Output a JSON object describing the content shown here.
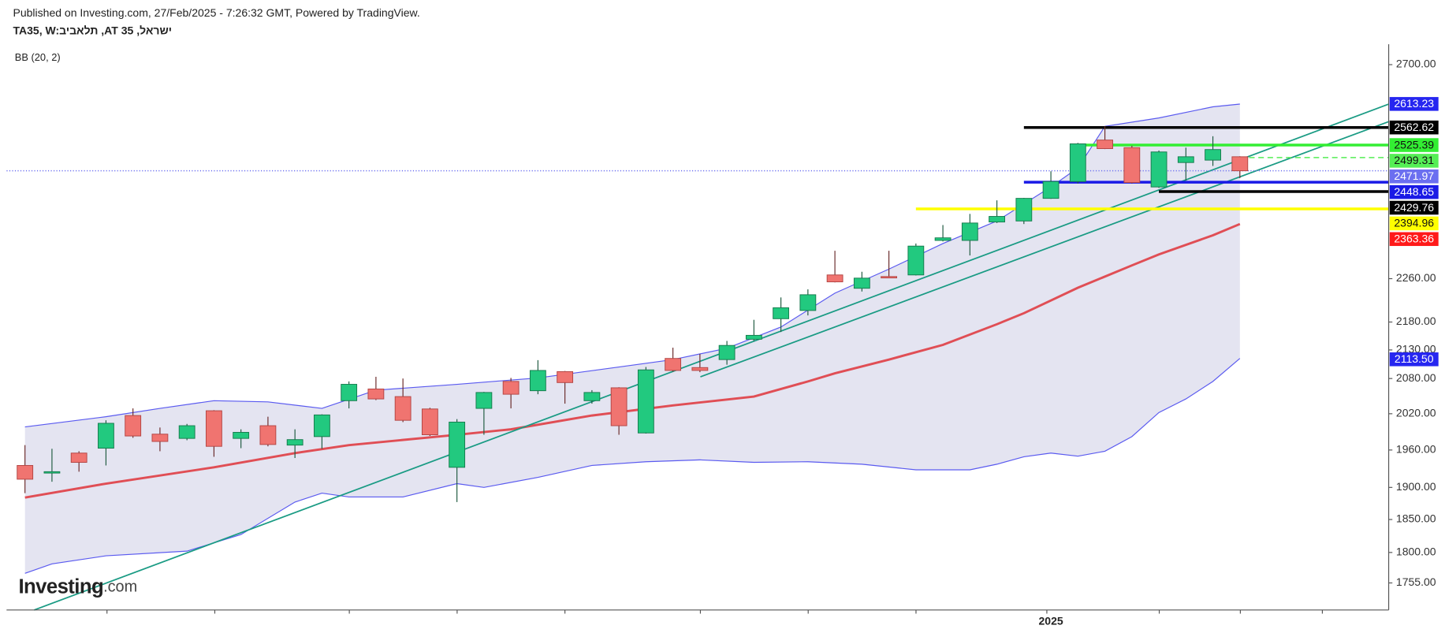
{
  "chart_data": {
    "type": "candlestick",
    "subtitle": "Published on Investing.com, 27/Feb/2025 - 7:26:32 GMT, Powered by TradingView.",
    "title": "TA35, W:ביבאלת ,AT 35 ,לארשי",
    "indicator": "BB (20, 2)",
    "logo": [
      "Investing",
      ".com"
    ],
    "log_scale": true,
    "ylim": [
      1716,
      2742
    ],
    "yticks": [
      {
        "value": 2700,
        "label": "2700.00"
      },
      {
        "value": 2260,
        "label": "2260.00"
      },
      {
        "value": 2180,
        "label": "2180.00"
      },
      {
        "value": 2130,
        "label": "2130.00"
      },
      {
        "value": 2080,
        "label": "2080.00"
      },
      {
        "value": 2020,
        "label": "2020.00"
      },
      {
        "value": 1960,
        "label": "1960.00"
      },
      {
        "value": 1900,
        "label": "1900.00"
      },
      {
        "value": 1850,
        "label": "1850.00"
      },
      {
        "value": 1800,
        "label": "1800.00"
      },
      {
        "value": 1755,
        "label": "1755.00"
      }
    ],
    "categories": [
      null,
      null,
      null,
      null,
      null,
      null,
      null,
      null,
      null,
      null,
      null,
      null,
      null,
      null,
      null,
      null,
      null,
      null,
      null,
      null,
      null,
      null,
      null,
      null,
      null,
      null,
      null,
      null,
      null,
      null,
      null,
      null,
      null,
      null,
      null,
      null,
      null,
      null,
      "2025",
      null,
      null,
      null,
      null,
      null,
      null,
      null
    ],
    "open": [
      1935,
      1925,
      1955,
      1963,
      2017,
      1986,
      1979,
      2025,
      1979,
      2000,
      1968,
      1982,
      2042,
      2062,
      2049,
      2028,
      1932,
      2029,
      2075,
      2059,
      2092,
      2042,
      2064,
      1988,
      2115,
      2099,
      2113,
      2149,
      2186,
      2201,
      2267,
      2242,
      2264,
      2267,
      2333,
      2333,
      2369,
      2371,
      2416,
      2450,
      2536,
      2520,
      2439,
      2489,
      2494,
      2501
    ],
    "high": [
      1968,
      1962,
      1958,
      2009,
      2029,
      1997,
      2003,
      2026,
      1994,
      2015,
      1994,
      2019,
      2075,
      2083,
      2080,
      2030,
      2011,
      2057,
      2081,
      2112,
      2093,
      2060,
      2065,
      2100,
      2134,
      2123,
      2146,
      2184,
      2225,
      2240,
      2313,
      2273,
      2313,
      2327,
      2363,
      2385,
      2412,
      2417,
      2471,
      2530,
      2565,
      2524,
      2514,
      2520,
      2544,
      2502
    ],
    "low": [
      1891,
      1909,
      1925,
      1935,
      1980,
      1958,
      1976,
      1949,
      1963,
      1966,
      1947,
      1962,
      2029,
      2043,
      2006,
      1983,
      1877,
      1985,
      2029,
      2053,
      2037,
      2037,
      1985,
      1987,
      2092,
      2091,
      2104,
      2146,
      2162,
      2192,
      2253,
      2236,
      2261,
      2266,
      2331,
      2304,
      2367,
      2365,
      2415,
      2446,
      2517,
      2446,
      2437,
      2452,
      2482,
      2457
    ],
    "close": [
      1913,
      1925,
      1940,
      2004,
      1983,
      1974,
      2000,
      1966,
      1989,
      1969,
      1977,
      2018,
      2070,
      2045,
      2009,
      1985,
      2006,
      2056,
      2053,
      2094,
      2073,
      2056,
      2000,
      2095,
      2094,
      2094,
      2138,
      2156,
      2206,
      2230,
      2254,
      2261,
      2262,
      2322,
      2338,
      2367,
      2380,
      2416,
      2450,
      2528,
      2518,
      2448,
      2511,
      2501,
      2516,
      2472
    ],
    "up_color": "#22c97f",
    "down_color": "#f07470",
    "series": [
      {
        "color": "#5a5af0",
        "x": [
          0,
          3,
          5,
          7,
          9,
          11,
          13,
          16,
          19,
          22,
          24,
          26,
          28,
          30,
          32,
          34,
          36,
          38,
          39,
          40,
          42,
          44,
          45
        ],
        "values": [
          1998,
          2015,
          2029,
          2042,
          2040,
          2029,
          2060,
          2070,
          2081,
          2100,
          2113,
          2133,
          2171,
          2233,
          2278,
          2327,
          2371,
          2439,
          2478,
          2565,
          2583,
          2607,
          2613
        ]
      },
      {
        "color": "#5a5af0",
        "x": [
          0,
          1,
          3,
          6,
          8,
          10,
          11,
          12,
          14,
          16,
          17,
          19,
          21,
          23,
          25,
          27,
          29,
          31,
          33,
          35,
          36,
          37,
          38,
          39,
          40,
          41,
          42,
          43,
          44,
          45
        ],
        "values": [
          1769,
          1783,
          1795,
          1802,
          1827,
          1877,
          1891,
          1885,
          1885,
          1906,
          1900,
          1916,
          1935,
          1941,
          1944,
          1940,
          1941,
          1937,
          1928,
          1928,
          1937,
          1949,
          1955,
          1950,
          1958,
          1982,
          2022,
          2045,
          2075,
          2115
        ]
      },
      {
        "color": "#e04e55",
        "x": [
          0,
          3,
          7,
          10,
          12,
          16,
          18,
          21,
          24,
          27,
          29,
          30,
          32,
          34,
          36,
          37,
          39,
          41,
          42,
          44,
          45
        ],
        "values": [
          1884,
          1906,
          1932,
          1955,
          1968,
          1985,
          1994,
          2017,
          2034,
          2049,
          2075,
          2089,
          2113,
          2139,
          2176,
          2196,
          2243,
          2285,
          2306,
          2343,
          2365
        ]
      }
    ],
    "band_fill": "#e4e4f1",
    "levels": [
      {
        "value": 2613.23,
        "color": "#2626f0",
        "text_color": "#ffffff",
        "style": "none"
      },
      {
        "value": 2562.62,
        "color": "#000000",
        "text_color": "#ffffff",
        "style": "solid"
      },
      {
        "value": 2525.39,
        "color": "#33ee33",
        "text_color": "#111111",
        "style": "solid"
      },
      {
        "value": 2499.31,
        "color": "#55ee55",
        "text_color": "#111111",
        "style": "dashed"
      },
      {
        "value": 2471.97,
        "color": "#6b6ff0",
        "text_color": "#ffffff",
        "style": "dotted"
      },
      {
        "value": 2448.65,
        "color": "#1a1ae6",
        "text_color": "#ffffff",
        "style": "solid"
      },
      {
        "value": 2429.76,
        "color": "#000000",
        "text_color": "#ffffff",
        "style": "solid"
      },
      {
        "value": 2394.96,
        "color": "#ffff00",
        "text_color": "#111111",
        "style": "solid"
      },
      {
        "value": 2363.36,
        "color": "#ff1a1a",
        "text_color": "#ffffff",
        "style": "none"
      },
      {
        "value": 2113.5,
        "label": "2113.50",
        "color": "#2626f0",
        "text_color": "#ffffff",
        "style": "none"
      }
    ]
  }
}
